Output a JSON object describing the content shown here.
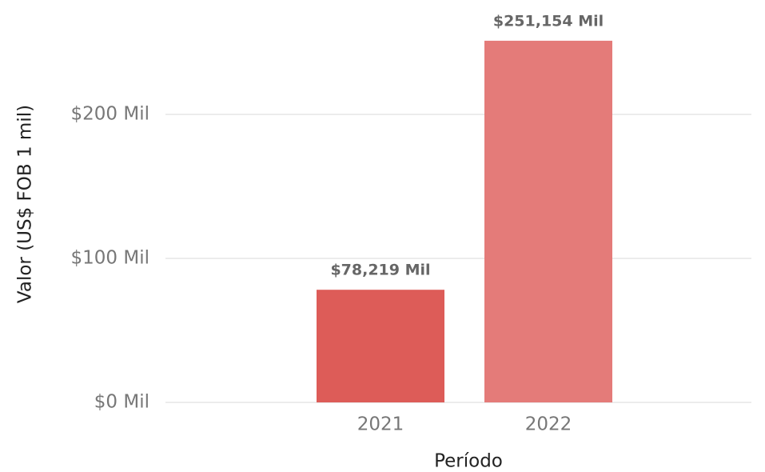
{
  "chart_data": {
    "type": "bar",
    "x_label": "Período",
    "y_label": "Valor (US$ FOB 1 mil)",
    "categories": [
      "2021",
      "2022"
    ],
    "values": [
      78.219,
      251.154
    ],
    "value_labels": [
      "$78,219 Mil",
      "$251,154 Mil"
    ],
    "colors": [
      "#dd5c58",
      "#e47b79"
    ],
    "ylim": [
      0,
      270
    ],
    "yticks": [
      {
        "value": 0,
        "label": "$0 Mil"
      },
      {
        "value": 100,
        "label": "$100 Mil"
      },
      {
        "value": 200,
        "label": "$200 Mil"
      }
    ],
    "grid": true
  }
}
